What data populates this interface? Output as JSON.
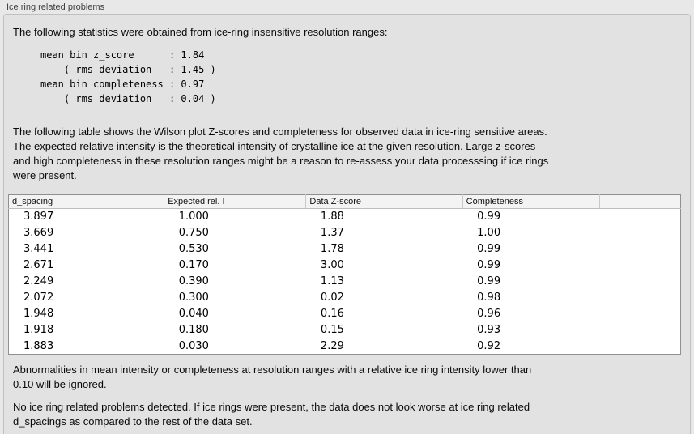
{
  "panel": {
    "title": "Ice ring related problems"
  },
  "intro": {
    "text": "The following statistics were obtained from ice-ring insensitive resolution ranges:"
  },
  "stats_block": {
    "text": "mean bin z_score      : 1.84\n    ( rms deviation   : 1.45 )\nmean bin completeness : 0.97\n    ( rms deviation   : 0.04 )",
    "mean_bin_z_score": "1.84",
    "z_score_rms_deviation": "1.45",
    "mean_bin_completeness": "0.97",
    "completeness_rms_deviation": "0.04"
  },
  "description": {
    "lines": [
      "The following table shows the Wilson plot Z-scores and completeness for observed data in ice-ring sensitive areas.",
      "The expected relative intensity is the theoretical intensity of crystalline ice at the given resolution. Large z-scores",
      "and high completeness in these resolution ranges might be a reason to re-assess your data processsing if ice rings",
      "were present."
    ]
  },
  "table": {
    "headers": [
      "d_spacing",
      "Expected rel. I",
      "Data Z-score",
      "Completeness",
      ""
    ],
    "rows": [
      [
        "3.897",
        "1.000",
        "1.88",
        "0.99"
      ],
      [
        "3.669",
        "0.750",
        "1.37",
        "1.00"
      ],
      [
        "3.441",
        "0.530",
        "1.78",
        "0.99"
      ],
      [
        "2.671",
        "0.170",
        "3.00",
        "0.99"
      ],
      [
        "2.249",
        "0.390",
        "1.13",
        "0.99"
      ],
      [
        "2.072",
        "0.300",
        "0.02",
        "0.98"
      ],
      [
        "1.948",
        "0.040",
        "0.16",
        "0.96"
      ],
      [
        "1.918",
        "0.180",
        "0.15",
        "0.93"
      ],
      [
        "1.883",
        "0.030",
        "2.29",
        "0.92"
      ]
    ]
  },
  "notes": {
    "ignore_lines": [
      "Abnormalities in mean intensity or completeness at resolution ranges with a relative ice ring intensity lower than",
      "0.10 will be ignored."
    ],
    "conclusion_lines": [
      "No ice ring related problems detected. If ice rings were present, the data does not look worse at ice ring related",
      "d_spacings as compared to the rest of the data set."
    ]
  },
  "colors": {
    "page_background": "#e8e8e8",
    "group_box_background": "#e2e2e2",
    "group_box_border": "#c0c0c0",
    "table_border": "#8f8f8f",
    "table_header_background": "#f3f3f3",
    "text": "#0a0a0a"
  }
}
